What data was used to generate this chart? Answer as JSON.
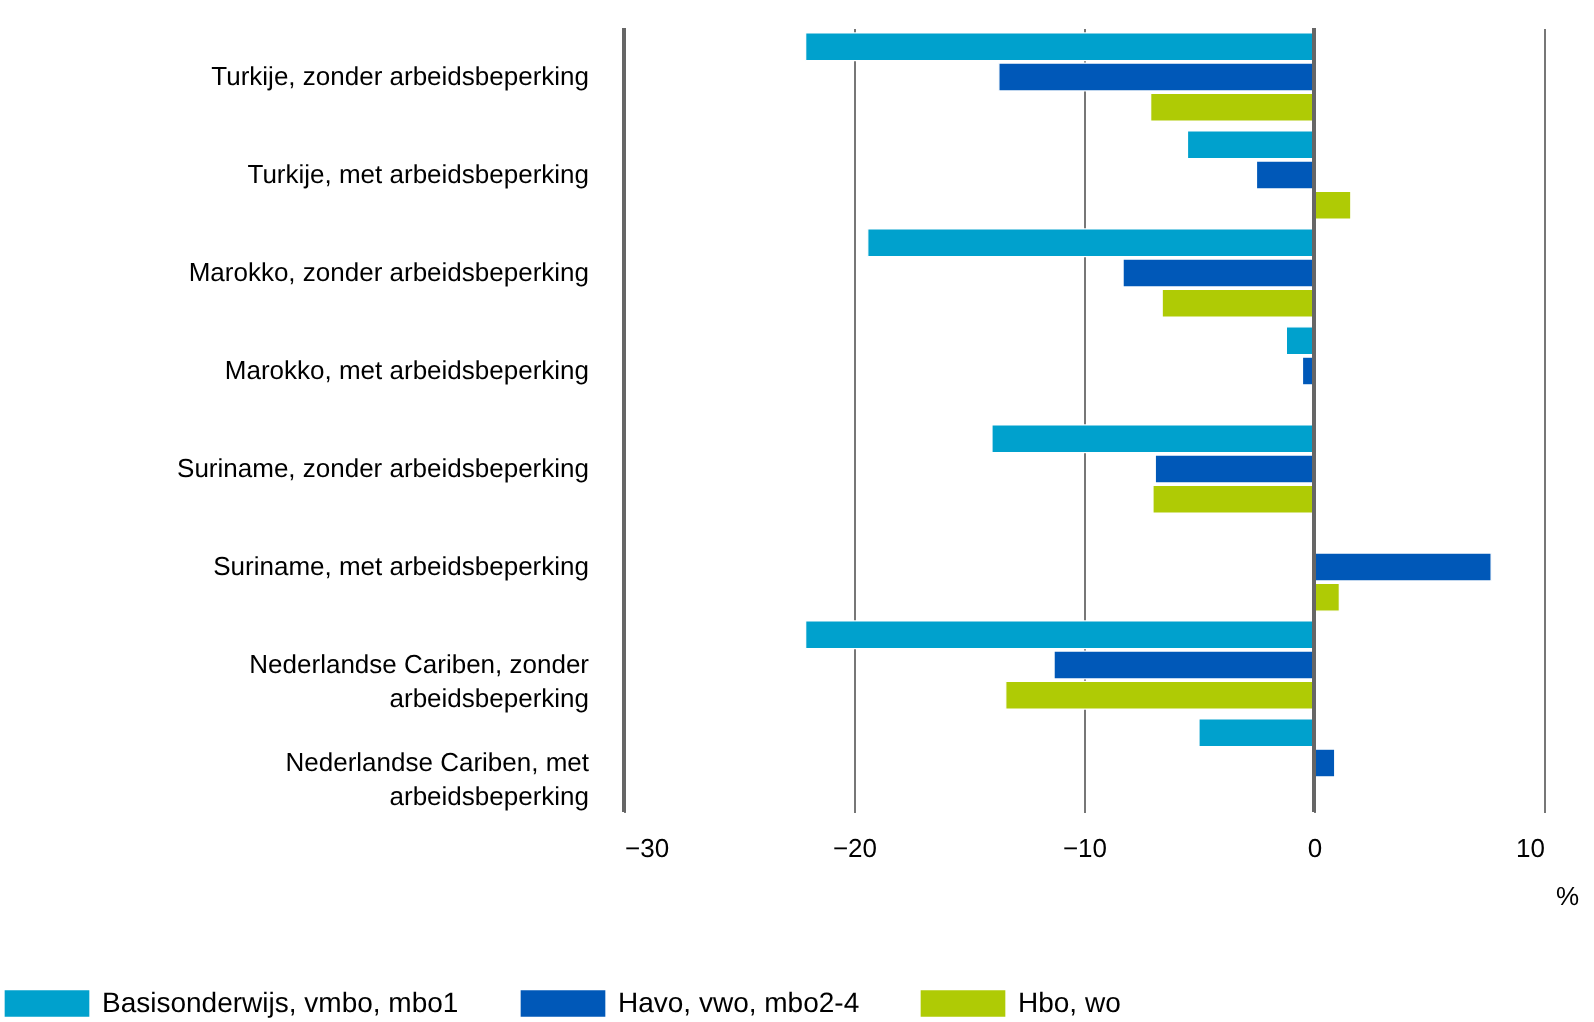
{
  "chart_data": {
    "type": "bar",
    "orientation": "horizontal",
    "xlabel": "%",
    "categories": [
      "Turkije, zonder arbeidsbeperking",
      "Turkije, met arbeidsbeperking",
      "Marokko, zonder arbeidsbeperking",
      "Marokko, met arbeidsbeperking",
      "Suriname, zonder arbeidsbeperking",
      "Suriname, met arbeidsbeperking",
      "Nederlandse Cariben, zonder arbeidsbeperking",
      "Nederlandse Cariben, met arbeidsbeperking"
    ],
    "series": [
      {
        "name": "Basisonderwijs, vmbo, mbo1",
        "color": "#00a1cd",
        "values": [
          -22.1,
          -5.5,
          -19.4,
          -1.2,
          -14.0,
          null,
          -22.1,
          -5.0
        ]
      },
      {
        "name": "Havo, vwo, mbo2-4",
        "color": "#0058b8",
        "values": [
          -13.7,
          -2.5,
          -8.3,
          -0.5,
          -6.9,
          7.7,
          -11.3,
          0.9
        ]
      },
      {
        "name": "Hbo, wo",
        "color": "#afcb05",
        "values": [
          -7.1,
          1.6,
          -6.6,
          null,
          -7.0,
          1.1,
          -13.4,
          null
        ]
      }
    ],
    "xlim": [
      -30,
      10
    ],
    "xticks": [
      -30,
      -20,
      -10,
      0,
      10
    ],
    "grid": "x",
    "legend": "bottom"
  }
}
